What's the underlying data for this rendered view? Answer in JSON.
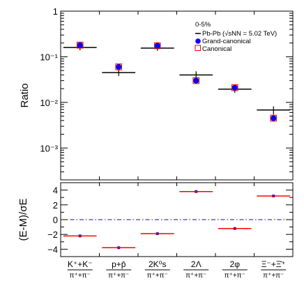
{
  "chart_data": {
    "type": "scatter",
    "categories": [
      {
        "num": "K⁺+K⁻",
        "den": "π⁺+π⁻"
      },
      {
        "num": "p+p̄",
        "den": "π⁺+π⁻"
      },
      {
        "num": "2K⁰s",
        "den": "π⁺+π⁻"
      },
      {
        "num": "2Λ",
        "den": "π⁺+π⁻"
      },
      {
        "num": "2φ",
        "den": "π⁺+π⁻"
      },
      {
        "num": "Ξ⁻+Ξ̄⁺",
        "den": "π⁺+π⁻"
      }
    ],
    "top_panel": {
      "ylabel": "Ratio",
      "yscale": "log",
      "ylim": [
        0.0002,
        1
      ],
      "yticks": [
        {
          "value": 1,
          "label": "1"
        },
        {
          "value": 0.1,
          "label": "10⁻¹"
        },
        {
          "value": 0.01,
          "label": "10⁻²"
        },
        {
          "value": 0.001,
          "label": "10⁻³"
        }
      ],
      "series": [
        {
          "name": "Pb-Pb (√sNN = 5.02 TeV)",
          "marker": "horizontal-line",
          "color": "#000000",
          "values": [
            0.16,
            0.045,
            0.155,
            0.04,
            0.0195,
            0.0068
          ],
          "err_low": [
            0.139,
            0.038,
            0.135,
            0.033,
            0.0162,
            0.0054
          ],
          "err_high": [
            0.183,
            0.052,
            0.177,
            0.048,
            0.0232,
            0.0082
          ]
        },
        {
          "name": "Grand-canonical",
          "marker": "filled-circle",
          "color": "#0000ff",
          "values": [
            0.18,
            0.06,
            0.175,
            0.03,
            0.021,
            0.0045
          ]
        },
        {
          "name": "Canonical",
          "marker": "open-square",
          "color": "#ff0000",
          "values": [
            0.18,
            0.06,
            0.175,
            0.03,
            0.021,
            0.0045
          ]
        }
      ],
      "legend": {
        "placement": "top-right",
        "header": "0-5%",
        "entries": [
          "Pb-Pb (√sNN = 5.02 TeV)",
          "Grand-canonical",
          "Canonical"
        ]
      }
    },
    "bottom_panel": {
      "ylabel": "(E-M)/σE",
      "ylim": [
        -5,
        5
      ],
      "yticks": [
        -4,
        -2,
        0,
        2,
        4
      ],
      "reference_line": 0,
      "values": [
        -2.2,
        -3.8,
        -1.9,
        3.8,
        -1.2,
        3.2
      ],
      "line_color": "#ff0000",
      "marker_color": "#800080"
    }
  }
}
